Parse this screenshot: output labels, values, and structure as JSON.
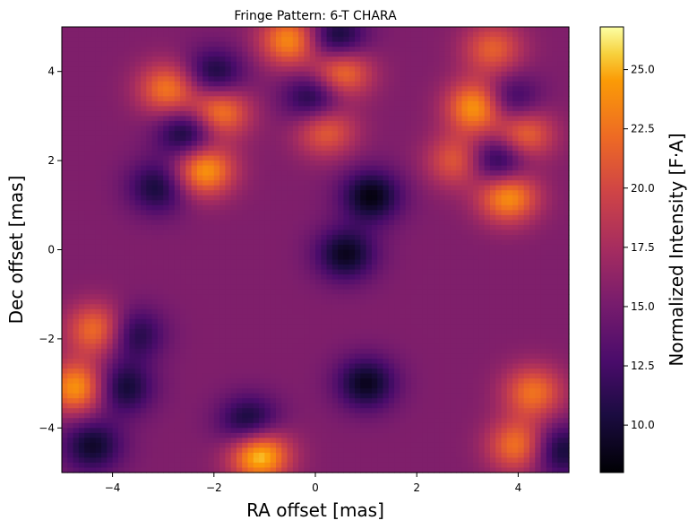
{
  "chart_data": {
    "type": "heatmap",
    "title": "Fringe Pattern: 6-T CHARA",
    "xlabel": "RA offset [mas]",
    "ylabel": "Dec offset [mas]",
    "xlim": [
      -5,
      5
    ],
    "ylim": [
      -5,
      5
    ],
    "xticks": [
      -4,
      -2,
      0,
      2,
      4
    ],
    "yticks": [
      -4,
      -2,
      0,
      2,
      4
    ],
    "colormap": "inferno",
    "colorbar": {
      "label": "Normalized Intensity [F·A]",
      "range": [
        8.0,
        26.8
      ],
      "ticks": [
        10.0,
        12.5,
        15.0,
        17.5,
        20.0,
        22.5,
        25.0
      ]
    },
    "grid": false,
    "bright_peaks": [
      {
        "x": -1.1,
        "y": -4.6,
        "value": 26.5
      },
      {
        "x": 3.2,
        "y": 3.2,
        "value": 25.5
      },
      {
        "x": -2.2,
        "y": 1.8,
        "value": 25.0
      },
      {
        "x": 3.8,
        "y": 1.2,
        "value": 24.5
      },
      {
        "x": -4.7,
        "y": -3.1,
        "value": 24.5
      },
      {
        "x": -0.5,
        "y": 4.7,
        "value": 24.0
      },
      {
        "x": 0.5,
        "y": 4.0,
        "value": 24.0
      },
      {
        "x": -1.9,
        "y": 3.1,
        "value": 24.0
      },
      {
        "x": 4.1,
        "y": 2.6,
        "value": 23.0
      },
      {
        "x": -2.9,
        "y": 3.6,
        "value": 23.0
      },
      {
        "x": -4.3,
        "y": -1.8,
        "value": 23.0
      },
      {
        "x": 4.0,
        "y": -4.4,
        "value": 23.0
      },
      {
        "x": 4.3,
        "y": -3.2,
        "value": 22.5
      },
      {
        "x": 0.2,
        "y": 2.7,
        "value": 22.0
      },
      {
        "x": 2.8,
        "y": 2.0,
        "value": 21.5
      },
      {
        "x": 3.5,
        "y": 4.5,
        "value": 21.5
      }
    ],
    "dark_troughs": [
      {
        "x": -2.5,
        "y": 2.6,
        "value": 8.5
      },
      {
        "x": 3.6,
        "y": 2.0,
        "value": 8.5
      },
      {
        "x": 1.1,
        "y": 1.2,
        "value": 8.5
      },
      {
        "x": 0.4,
        "y": 4.7,
        "value": 8.5
      },
      {
        "x": 0.6,
        "y": -0.1,
        "value": 9.0
      },
      {
        "x": 1.0,
        "y": -3.0,
        "value": 9.0
      },
      {
        "x": -1.3,
        "y": -3.9,
        "value": 9.0
      },
      {
        "x": 0.0,
        "y": 3.4,
        "value": 9.0
      },
      {
        "x": -2.0,
        "y": 3.9,
        "value": 9.5
      },
      {
        "x": 3.8,
        "y": 3.3,
        "value": 9.5
      },
      {
        "x": -3.8,
        "y": -3.1,
        "value": 9.5
      },
      {
        "x": -4.4,
        "y": -4.4,
        "value": 9.5
      },
      {
        "x": 4.8,
        "y": -4.5,
        "value": 9.5
      },
      {
        "x": -3.1,
        "y": 1.4,
        "value": 10.0
      },
      {
        "x": -3.6,
        "y": -1.9,
        "value": 10.0
      }
    ]
  }
}
